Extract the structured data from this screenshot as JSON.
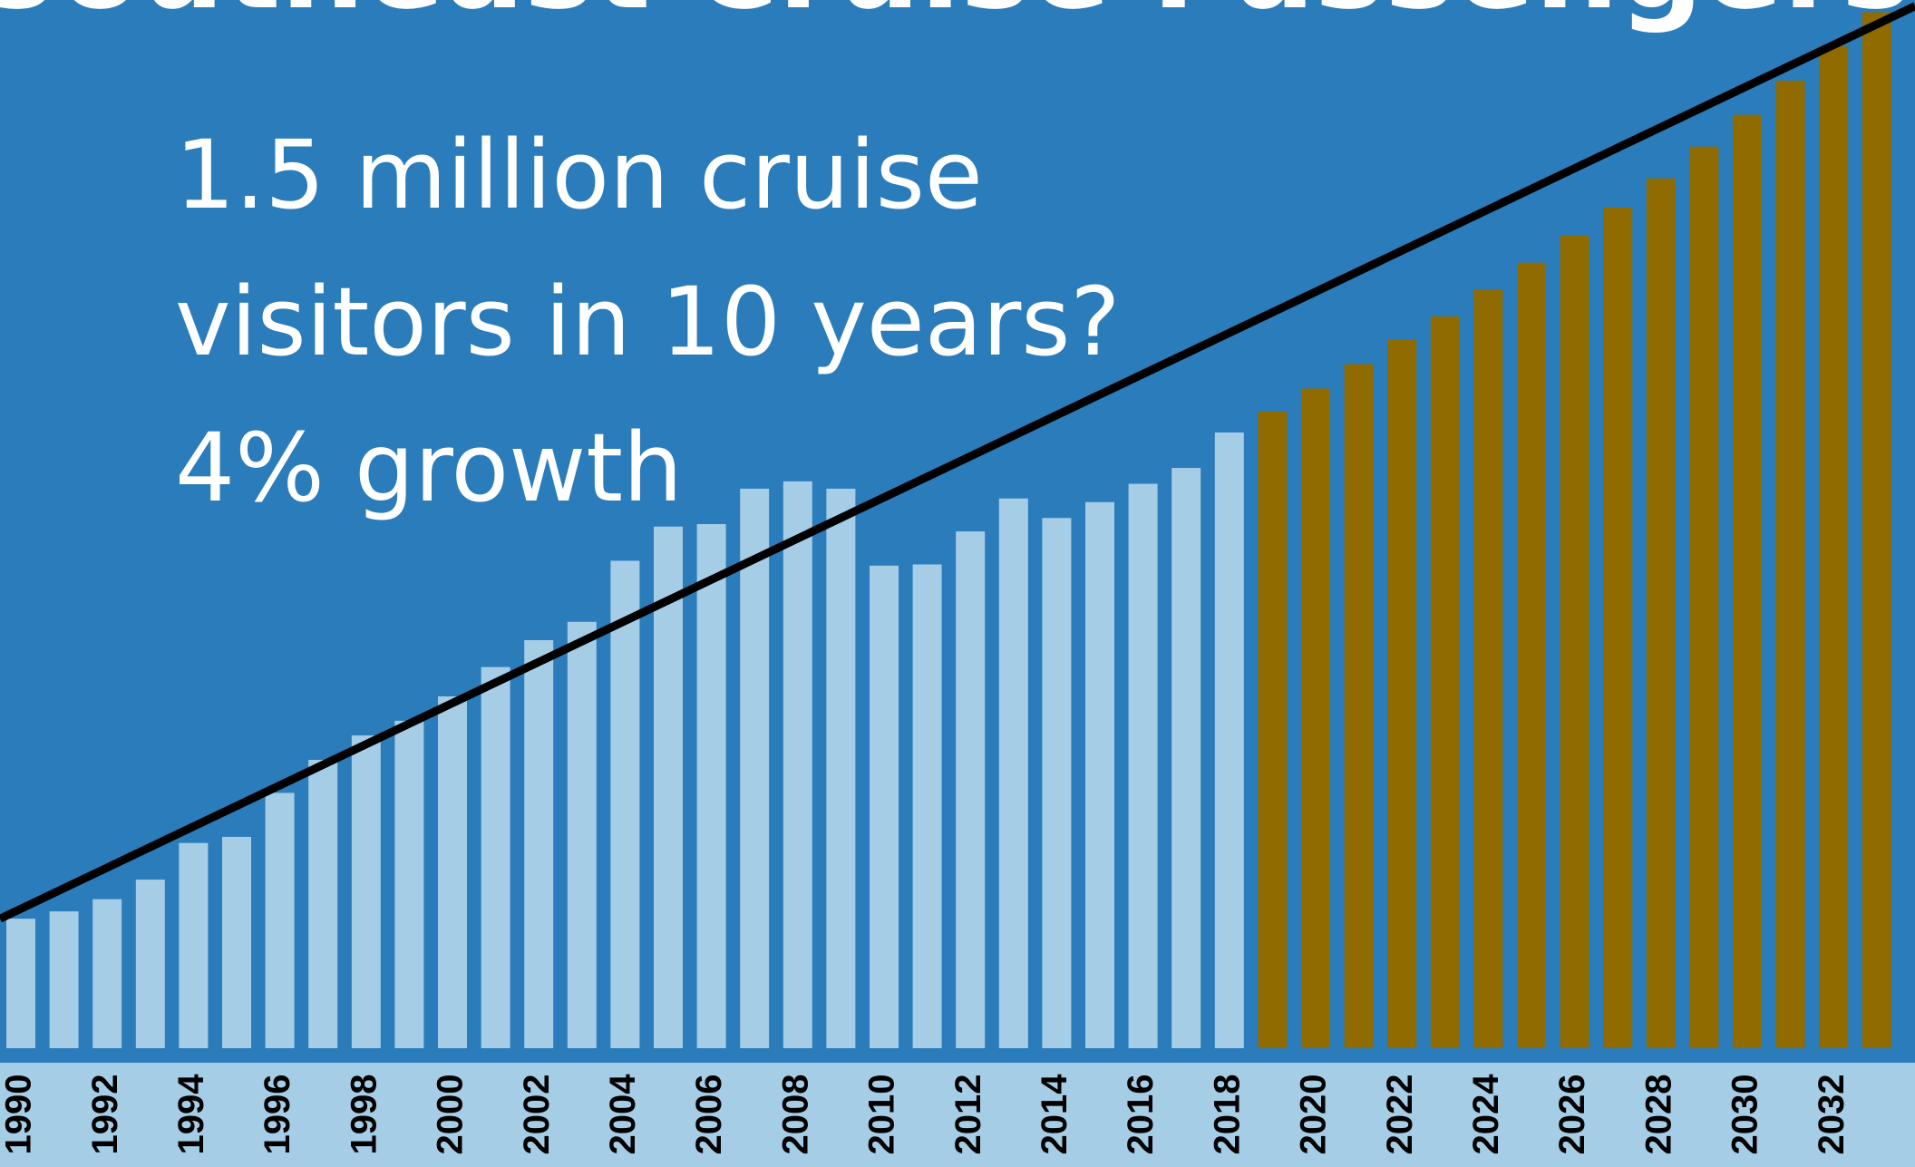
{
  "chart_data": {
    "type": "bar",
    "title": "Southeast Cruise Passengers",
    "annotations": [
      "1.5 million cruise",
      "visitors in 10 years?",
      "4% growth"
    ],
    "categories": [
      "1990",
      null,
      "1992",
      null,
      "1994",
      null,
      "1996",
      null,
      "1998",
      null,
      "2000",
      null,
      "2002",
      null,
      "2004",
      null,
      "2006",
      null,
      "2008",
      null,
      "2010",
      null,
      "2012",
      null,
      "2014",
      null,
      "2016",
      null,
      "2018",
      null,
      "2020",
      null,
      "2022",
      null,
      "2024",
      null,
      "2026",
      null,
      "2028",
      null,
      "2030",
      null,
      "2032",
      null
    ],
    "series": [
      {
        "color": "#a6cde6",
        "values": [
          106,
          112,
          122,
          138,
          168,
          173,
          209,
          236,
          256,
          268,
          288,
          312,
          334,
          349,
          399,
          427,
          429,
          458,
          464,
          458,
          395,
          396,
          423,
          450,
          434,
          447,
          462,
          475,
          504,
          null,
          null,
          null,
          null,
          null,
          null,
          null,
          null,
          null,
          null,
          null,
          null,
          null,
          null,
          null
        ]
      },
      {
        "color": "#8f6b00",
        "values": [
          null,
          null,
          null,
          null,
          null,
          null,
          null,
          null,
          null,
          null,
          null,
          null,
          null,
          null,
          null,
          null,
          null,
          null,
          null,
          null,
          null,
          null,
          null,
          null,
          null,
          null,
          null,
          null,
          null,
          521,
          540,
          560,
          580,
          599,
          621,
          643,
          665,
          688,
          712,
          738,
          764,
          792,
          820,
          848
        ]
      }
    ],
    "trend_line": {
      "color": "#000000",
      "values": [
        106,
        853
      ]
    },
    "ylim": [
      0,
      858
    ],
    "background": "#2a7cba",
    "axis_band_color": "#a6cde6"
  }
}
